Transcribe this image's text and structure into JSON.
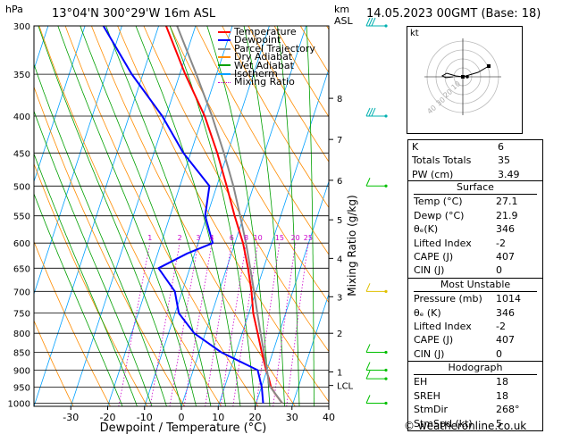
{
  "header": {
    "hpa_label": "hPa",
    "location": "13°04'N  300°29'W  16m  ASL",
    "km_label": "km",
    "asl_label": "ASL",
    "datetime": "14.05.2023  00GMT  (Base: 18)"
  },
  "legend": [
    {
      "label": "Temperature",
      "color": "#ff0000",
      "dotted": false
    },
    {
      "label": "Dewpoint",
      "color": "#0000ff",
      "dotted": false
    },
    {
      "label": "Parcel Trajectory",
      "color": "#888888",
      "dotted": false
    },
    {
      "label": "Dry Adiabat",
      "color": "#ff8c00",
      "dotted": false
    },
    {
      "label": "Wet Adiabat",
      "color": "#00a000",
      "dotted": false
    },
    {
      "label": "Isotherm",
      "color": "#00a0ff",
      "dotted": false
    },
    {
      "label": "Mixing Ratio",
      "color": "#cc00cc",
      "dotted": true
    }
  ],
  "chart_data": {
    "type": "line",
    "xlabel": "Dewpoint / Temperature (°C)",
    "ylabel_right": "Mixing Ratio (g/kg)",
    "x_ticks": [
      -30,
      -20,
      -10,
      0,
      10,
      20,
      30,
      40
    ],
    "x_range": [
      -40,
      40
    ],
    "pressure_ticks": [
      300,
      350,
      400,
      450,
      500,
      550,
      600,
      650,
      700,
      750,
      800,
      850,
      900,
      950,
      1000
    ],
    "pressure_range": [
      300,
      1010
    ],
    "skew_per_log_unit": 115,
    "km_ticks": [
      {
        "label": "8",
        "p": 378
      },
      {
        "label": "7",
        "p": 431
      },
      {
        "label": "6",
        "p": 491
      },
      {
        "label": "5",
        "p": 557
      },
      {
        "label": "4",
        "p": 630
      },
      {
        "label": "3",
        "p": 712
      },
      {
        "label": "2",
        "p": 800
      },
      {
        "label": "1",
        "p": 905
      },
      {
        "label": "LCL",
        "p": 945
      }
    ],
    "mixing_ratio_labels": [
      "1",
      "2",
      "3",
      "4",
      "6",
      "8",
      "10",
      "15",
      "20",
      "25"
    ],
    "mixing_ratio_values": [
      1,
      2,
      3,
      4,
      6,
      8,
      10,
      15,
      20,
      25
    ],
    "series": [
      {
        "name": "Temperature",
        "color": "#ff0000",
        "points": [
          [
            1000,
            27.1
          ],
          [
            970,
            24.3
          ],
          [
            950,
            22.6
          ],
          [
            925,
            21.3
          ],
          [
            900,
            19.8
          ],
          [
            850,
            17
          ],
          [
            800,
            14.2
          ],
          [
            750,
            11.2
          ],
          [
            700,
            8.8
          ],
          [
            650,
            5.8
          ],
          [
            600,
            2.2
          ],
          [
            550,
            -2.5
          ],
          [
            500,
            -7.3
          ],
          [
            450,
            -12.8
          ],
          [
            400,
            -19.5
          ],
          [
            350,
            -28.5
          ],
          [
            300,
            -38
          ]
        ]
      },
      {
        "name": "Dewpoint",
        "color": "#0000ff",
        "points": [
          [
            1000,
            21.9
          ],
          [
            950,
            20.1
          ],
          [
            900,
            17.5
          ],
          [
            850,
            6
          ],
          [
            800,
            -3
          ],
          [
            750,
            -9
          ],
          [
            700,
            -12
          ],
          [
            650,
            -18.5
          ],
          [
            620,
            -12
          ],
          [
            600,
            -6
          ],
          [
            550,
            -10.5
          ],
          [
            500,
            -12
          ],
          [
            450,
            -22
          ],
          [
            400,
            -31
          ],
          [
            350,
            -43
          ],
          [
            300,
            -55
          ]
        ]
      },
      {
        "name": "Parcel Trajectory",
        "color": "#888888",
        "points": [
          [
            1000,
            27.1
          ],
          [
            945,
            22
          ],
          [
            900,
            20
          ],
          [
            850,
            17.6
          ],
          [
            800,
            15
          ],
          [
            750,
            12.3
          ],
          [
            700,
            9.5
          ],
          [
            650,
            6.4
          ],
          [
            600,
            3
          ],
          [
            550,
            -1
          ],
          [
            500,
            -5.5
          ],
          [
            450,
            -11
          ],
          [
            400,
            -17.5
          ],
          [
            350,
            -25.5
          ],
          [
            300,
            -35
          ]
        ]
      }
    ],
    "wind_barbs": [
      {
        "p": 300,
        "color": "#00b0b0",
        "style": "triple"
      },
      {
        "p": 400,
        "color": "#00b0b0",
        "style": "triple"
      },
      {
        "p": 500,
        "color": "#00c000",
        "style": "single"
      },
      {
        "p": 700,
        "color": "#e0c000",
        "style": "single"
      },
      {
        "p": 850,
        "color": "#00c000",
        "style": "single"
      },
      {
        "p": 900,
        "color": "#00c000",
        "style": "single"
      },
      {
        "p": 925,
        "color": "#00c000",
        "style": "single"
      },
      {
        "p": 1000,
        "color": "#00c000",
        "style": "single"
      }
    ]
  },
  "hodograph": {
    "label": "kt",
    "ring_labels": [
      "10",
      "20",
      "30",
      "40"
    ]
  },
  "stats_top": [
    {
      "label": "K",
      "value": "6"
    },
    {
      "label": "Totals Totals",
      "value": "35"
    },
    {
      "label": "PW (cm)",
      "value": "3.49"
    }
  ],
  "surface": {
    "title": "Surface",
    "rows": [
      {
        "label": "Temp (°C)",
        "value": "27.1"
      },
      {
        "label": "Dewp (°C)",
        "value": "21.9"
      },
      {
        "label": "θₑ(K)",
        "value": "346"
      },
      {
        "label": "Lifted Index",
        "value": "-2"
      },
      {
        "label": "CAPE (J)",
        "value": "407"
      },
      {
        "label": "CIN (J)",
        "value": "0"
      }
    ]
  },
  "most_unstable": {
    "title": "Most Unstable",
    "rows": [
      {
        "label": "Pressure (mb)",
        "value": "1014"
      },
      {
        "label": "θₑ (K)",
        "value": "346"
      },
      {
        "label": "Lifted Index",
        "value": "-2"
      },
      {
        "label": "CAPE (J)",
        "value": "407"
      },
      {
        "label": "CIN (J)",
        "value": "0"
      }
    ]
  },
  "hodograph_stats": {
    "title": "Hodograph",
    "rows": [
      {
        "label": "EH",
        "value": "18"
      },
      {
        "label": "SREH",
        "value": "18"
      },
      {
        "label": "StmDir",
        "value": "268°"
      },
      {
        "label": "StmSpd (kt)",
        "value": "5"
      }
    ]
  },
  "footer": {
    "copyright": "© weatheronline.co.uk"
  }
}
